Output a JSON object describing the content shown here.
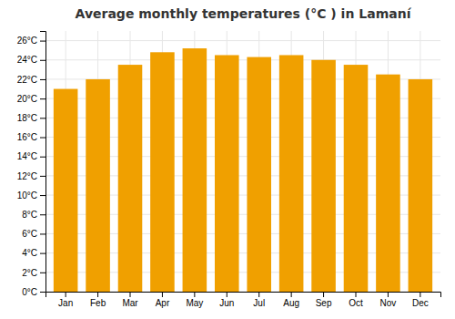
{
  "chart_data": {
    "type": "bar",
    "title": "Average monthly temperatures (°C ) in Lamaní",
    "categories": [
      "Jan",
      "Feb",
      "Mar",
      "Apr",
      "May",
      "Jun",
      "Jul",
      "Aug",
      "Sep",
      "Oct",
      "Nov",
      "Dec"
    ],
    "values": [
      21.0,
      22.0,
      23.5,
      24.8,
      25.2,
      24.5,
      24.3,
      24.5,
      24.0,
      23.5,
      22.5,
      22.0
    ],
    "color": "#F0A000",
    "ylim": [
      0,
      27
    ],
    "yticks": [
      {
        "value": 0,
        "label": "0°C"
      },
      {
        "value": 2,
        "label": "2°C"
      },
      {
        "value": 4,
        "label": "4°C"
      },
      {
        "value": 6,
        "label": "6°C"
      },
      {
        "value": 8,
        "label": "8°C"
      },
      {
        "value": 10,
        "label": "10°C"
      },
      {
        "value": 12,
        "label": "12°C"
      },
      {
        "value": 14,
        "label": "14°C"
      },
      {
        "value": 16,
        "label": "16°C"
      },
      {
        "value": 18,
        "label": "18°C"
      },
      {
        "value": 20,
        "label": "20°C"
      },
      {
        "value": 22,
        "label": "22°C"
      },
      {
        "value": 24,
        "label": "24°C"
      },
      {
        "value": 26,
        "label": "26°C"
      }
    ],
    "grid": true
  }
}
